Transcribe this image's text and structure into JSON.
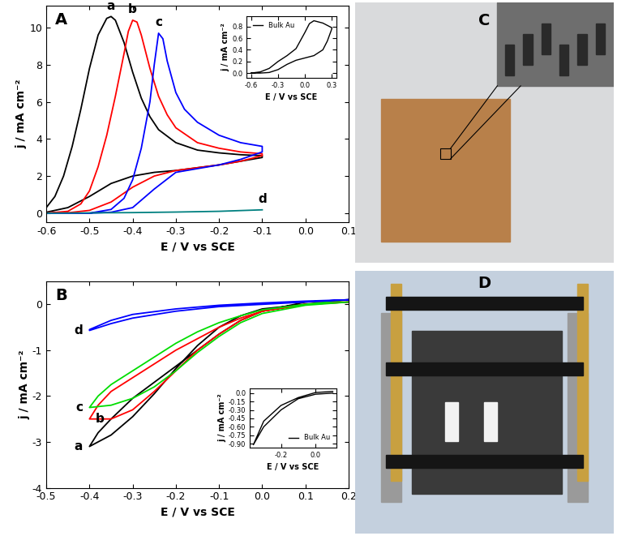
{
  "chart_data": [
    {
      "type": "line",
      "title": "A",
      "x_label": "E / V vs SCE",
      "y_label": "j / mA cm⁻²",
      "xlim": [
        -0.6,
        0.1
      ],
      "ylim": [
        -0.5,
        11.2
      ],
      "xticks": [
        -0.6,
        -0.5,
        -0.4,
        -0.3,
        -0.2,
        -0.1,
        {
          "value": 0,
          "label": "0.0"
        },
        0.1
      ],
      "yticks": [
        0,
        2,
        4,
        6,
        8,
        10
      ],
      "series": [
        {
          "name": "a",
          "color": "#000000",
          "x": [
            -0.6,
            -0.58,
            -0.56,
            -0.54,
            -0.52,
            -0.5,
            -0.48,
            -0.46,
            -0.45,
            -0.44,
            -0.42,
            -0.4,
            -0.38,
            -0.36,
            -0.34,
            -0.3,
            -0.25,
            -0.2,
            -0.15,
            -0.1,
            -0.1,
            -0.15,
            -0.2,
            -0.25,
            -0.3,
            -0.35,
            -0.4,
            -0.45,
            -0.5,
            -0.55,
            -0.6
          ],
          "values": [
            0.3,
            0.9,
            2.0,
            3.6,
            5.6,
            7.8,
            9.6,
            10.5,
            10.6,
            10.4,
            9.2,
            7.6,
            6.2,
            5.2,
            4.5,
            3.8,
            3.4,
            3.25,
            3.15,
            3.1,
            3.0,
            2.8,
            2.6,
            2.45,
            2.3,
            2.2,
            2.0,
            1.6,
            0.9,
            0.3,
            0.05
          ]
        },
        {
          "name": "b",
          "color": "#ff0000",
          "x": [
            -0.6,
            -0.55,
            -0.52,
            -0.5,
            -0.48,
            -0.46,
            -0.44,
            -0.42,
            -0.41,
            -0.4,
            -0.39,
            -0.38,
            -0.36,
            -0.34,
            -0.32,
            -0.3,
            -0.25,
            -0.2,
            -0.15,
            -0.1,
            -0.1,
            -0.15,
            -0.2,
            -0.25,
            -0.3,
            -0.35,
            -0.4,
            -0.45,
            -0.5,
            -0.55,
            -0.6
          ],
          "values": [
            0.0,
            0.1,
            0.5,
            1.2,
            2.5,
            4.2,
            6.3,
            8.6,
            9.8,
            10.4,
            10.3,
            9.6,
            7.8,
            6.3,
            5.3,
            4.6,
            3.8,
            3.5,
            3.3,
            3.2,
            3.1,
            2.8,
            2.6,
            2.45,
            2.3,
            2.0,
            1.4,
            0.6,
            0.15,
            0.02,
            0.0
          ]
        },
        {
          "name": "c",
          "color": "#0000ff",
          "x": [
            -0.6,
            -0.5,
            -0.45,
            -0.42,
            -0.4,
            -0.38,
            -0.36,
            -0.35,
            -0.34,
            -0.33,
            -0.32,
            -0.3,
            -0.28,
            -0.25,
            -0.2,
            -0.15,
            -0.1,
            -0.1,
            -0.15,
            -0.2,
            -0.25,
            -0.3,
            -0.35,
            -0.4,
            -0.45,
            -0.5,
            -0.6
          ],
          "values": [
            0.0,
            0.0,
            0.2,
            0.8,
            1.8,
            3.5,
            6.0,
            8.0,
            9.7,
            9.4,
            8.2,
            6.5,
            5.6,
            4.9,
            4.2,
            3.8,
            3.6,
            3.3,
            2.9,
            2.6,
            2.4,
            2.2,
            1.3,
            0.3,
            0.05,
            0.0,
            0.0
          ]
        },
        {
          "name": "d",
          "color": "#008080",
          "x": [
            -0.6,
            -0.4,
            -0.3,
            -0.2,
            -0.1
          ],
          "values": [
            0.0,
            0.03,
            0.06,
            0.1,
            0.18
          ]
        }
      ],
      "inset": {
        "type": "line",
        "xlim": [
          -0.65,
          0.35
        ],
        "ylim": [
          -0.08,
          0.98
        ],
        "xticks": [
          -0.6,
          -0.3,
          {
            "value": 0,
            "label": "0.0"
          },
          0.3
        ],
        "yticks": [
          {
            "value": 0,
            "label": "0.0"
          },
          0.2,
          0.4,
          0.6,
          0.8
        ],
        "x_label": "E / V vs SCE",
        "y_label": "j / mA cm⁻²",
        "legend": "upper left",
        "series": [
          {
            "name": "Bulk Au",
            "color": "#000000",
            "x": [
              -0.6,
              -0.5,
              -0.4,
              -0.3,
              -0.2,
              -0.1,
              0.0,
              0.05,
              0.1,
              0.2,
              0.3,
              0.3,
              0.25,
              0.2,
              0.1,
              0.0,
              -0.1,
              -0.2,
              -0.3,
              -0.4,
              -0.5,
              -0.6
            ],
            "values": [
              0.0,
              0.02,
              0.08,
              0.2,
              0.3,
              0.42,
              0.7,
              0.85,
              0.9,
              0.86,
              0.78,
              0.76,
              0.55,
              0.4,
              0.3,
              0.26,
              0.22,
              0.15,
              0.06,
              0.01,
              0.0,
              0.0
            ]
          }
        ]
      }
    },
    {
      "type": "line",
      "title": "B",
      "x_label": "E / V vs SCE",
      "y_label": "j / mA cm⁻²",
      "xlim": [
        -0.5,
        0.2
      ],
      "ylim": [
        -4,
        0.5
      ],
      "xticks": [
        -0.5,
        -0.4,
        -0.3,
        -0.2,
        -0.1,
        {
          "value": 0,
          "label": "0.0"
        },
        0.1,
        0.2
      ],
      "yticks": [
        -4,
        -3,
        -2,
        -1,
        0
      ],
      "series": [
        {
          "name": "a",
          "color": "#000000",
          "x": [
            0.2,
            0.1,
            0.0,
            -0.05,
            -0.1,
            -0.15,
            -0.2,
            -0.25,
            -0.3,
            -0.35,
            -0.4,
            -0.4,
            -0.38,
            -0.35,
            -0.3,
            -0.25,
            -0.2,
            -0.15,
            -0.1,
            -0.05,
            0.0,
            0.1,
            0.2
          ],
          "values": [
            0.05,
            0.0,
            -0.1,
            -0.25,
            -0.5,
            -0.9,
            -1.4,
            -1.95,
            -2.45,
            -2.85,
            -3.1,
            -3.1,
            -2.8,
            -2.5,
            -2.05,
            -1.7,
            -1.35,
            -1.0,
            -0.65,
            -0.35,
            -0.15,
            0.05,
            0.1
          ]
        },
        {
          "name": "b",
          "color": "#ff0000",
          "x": [
            0.2,
            0.1,
            0.0,
            -0.05,
            -0.1,
            -0.15,
            -0.2,
            -0.25,
            -0.3,
            -0.35,
            -0.4,
            -0.4,
            -0.38,
            -0.35,
            -0.3,
            -0.25,
            -0.2,
            -0.15,
            -0.1,
            -0.05,
            0.0,
            0.1,
            0.2
          ],
          "values": [
            0.05,
            0.0,
            -0.15,
            -0.35,
            -0.65,
            -1.0,
            -1.45,
            -1.9,
            -2.3,
            -2.5,
            -2.5,
            -2.5,
            -2.2,
            -1.9,
            -1.6,
            -1.3,
            -1.0,
            -0.75,
            -0.5,
            -0.3,
            -0.15,
            0.0,
            0.1
          ]
        },
        {
          "name": "c",
          "color": "#00dd00",
          "x": [
            0.2,
            0.1,
            0.0,
            -0.05,
            -0.1,
            -0.15,
            -0.2,
            -0.25,
            -0.3,
            -0.35,
            -0.4,
            -0.4,
            -0.38,
            -0.35,
            -0.3,
            -0.25,
            -0.2,
            -0.15,
            -0.1,
            -0.05,
            0.0,
            0.1,
            0.2
          ],
          "values": [
            0.05,
            -0.02,
            -0.2,
            -0.4,
            -0.7,
            -1.05,
            -1.45,
            -1.8,
            -2.05,
            -2.2,
            -2.25,
            -2.25,
            -2.0,
            -1.75,
            -1.45,
            -1.15,
            -0.85,
            -0.6,
            -0.4,
            -0.25,
            -0.12,
            0.0,
            0.1
          ]
        },
        {
          "name": "d",
          "color": "#0000ff",
          "x": [
            0.2,
            0.1,
            0.0,
            -0.1,
            -0.2,
            -0.3,
            -0.35,
            -0.4,
            -0.4,
            -0.35,
            -0.3,
            -0.2,
            -0.1,
            0.0,
            0.1,
            0.2
          ],
          "values": [
            0.1,
            0.05,
            0.0,
            -0.05,
            -0.15,
            -0.3,
            -0.42,
            -0.57,
            -0.55,
            -0.35,
            -0.22,
            -0.1,
            -0.02,
            0.03,
            0.07,
            0.1
          ]
        }
      ],
      "inset": {
        "type": "line",
        "xlim": [
          -0.38,
          0.12
        ],
        "ylim": [
          -0.97,
          0.08
        ],
        "xticks": [
          -0.2,
          {
            "value": 0,
            "label": "0.0"
          }
        ],
        "yticks": [
          {
            "value": 0,
            "label": "0.0"
          },
          -0.15,
          {
            "value": -0.3,
            "label": "-0.30"
          },
          -0.45,
          {
            "value": -0.6,
            "label": "-0.60"
          },
          -0.75,
          {
            "value": -0.9,
            "label": "-0.90"
          }
        ],
        "x_label": "E / V vs SCE",
        "y_label": "j / mA cm⁻²",
        "legend": "lower right",
        "series": [
          {
            "name": "Bulk Au",
            "color": "#000000",
            "x": [
              0.1,
              0.0,
              -0.1,
              -0.2,
              -0.3,
              -0.36,
              -0.36,
              -0.3,
              -0.2,
              -0.1,
              0.0,
              0.1
            ],
            "values": [
              0.0,
              -0.02,
              -0.1,
              -0.3,
              -0.6,
              -0.92,
              -0.92,
              -0.5,
              -0.22,
              -0.08,
              0.01,
              0.03
            ]
          }
        ]
      }
    }
  ],
  "images": [
    {
      "label": "C"
    },
    {
      "label": "D"
    }
  ]
}
